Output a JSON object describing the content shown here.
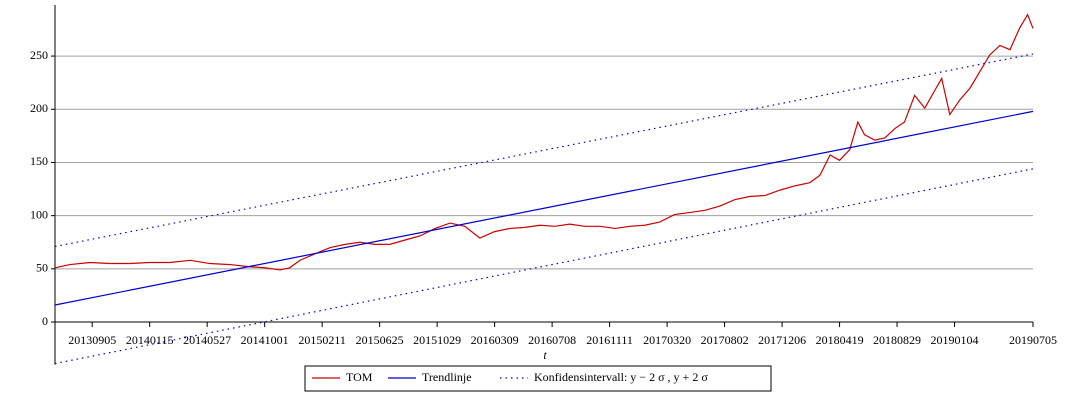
{
  "chart_data": {
    "type": "line",
    "x_label": "t",
    "xlim": [
      0,
      1446
    ],
    "xticks": [
      {
        "value": 55,
        "label": "20130905"
      },
      {
        "value": 140,
        "label": "20140115"
      },
      {
        "value": 225,
        "label": "20140527"
      },
      {
        "value": 310,
        "label": "20141001"
      },
      {
        "value": 395,
        "label": "20150211"
      },
      {
        "value": 480,
        "label": "20150625"
      },
      {
        "value": 565,
        "label": "20151029"
      },
      {
        "value": 650,
        "label": "20160309"
      },
      {
        "value": 735,
        "label": "20160708"
      },
      {
        "value": 820,
        "label": "20161111"
      },
      {
        "value": 905,
        "label": "20170320"
      },
      {
        "value": 990,
        "label": "20170802"
      },
      {
        "value": 1075,
        "label": "20171206"
      },
      {
        "value": 1160,
        "label": "20180419"
      },
      {
        "value": 1245,
        "label": "20180829"
      },
      {
        "value": 1330,
        "label": "20190104"
      },
      {
        "value": 1446,
        "label": "20190705"
      }
    ],
    "ylim": [
      -40,
      298
    ],
    "yticks": [
      0,
      50,
      100,
      150,
      200,
      250
    ],
    "grid": true,
    "series": [
      {
        "name": "TOM",
        "color": "#cc0000",
        "style": "solid",
        "x": [
          0,
          22,
          52,
          81,
          111,
          140,
          170,
          200,
          229,
          259,
          288,
          310,
          333,
          347,
          362,
          384,
          407,
          429,
          451,
          473,
          495,
          517,
          540,
          562,
          584,
          606,
          628,
          650,
          673,
          695,
          717,
          739,
          761,
          783,
          806,
          828,
          850,
          872,
          894,
          916,
          939,
          961,
          983,
          1005,
          1027,
          1050,
          1072,
          1094,
          1116,
          1131,
          1146,
          1160,
          1175,
          1187,
          1197,
          1212,
          1227,
          1242,
          1256,
          1271,
          1286,
          1301,
          1311,
          1323,
          1338,
          1353,
          1367,
          1382,
          1397,
          1412,
          1426,
          1438,
          1446
        ],
        "values": [
          51,
          54,
          56,
          55,
          55,
          56,
          56,
          58,
          55,
          54,
          52,
          51,
          49,
          51,
          58,
          64,
          70,
          73,
          75,
          73,
          73,
          77,
          81,
          88,
          93,
          90,
          79,
          85,
          88,
          89,
          91,
          90,
          92,
          90,
          90,
          88,
          90,
          91,
          94,
          101,
          103,
          105,
          109,
          115,
          118,
          119,
          124,
          128,
          131,
          138,
          157,
          152,
          162,
          188,
          176,
          171,
          173,
          182,
          188,
          213,
          201,
          218,
          229,
          195,
          209,
          220,
          235,
          251,
          260,
          256,
          276,
          289,
          276
        ]
      },
      {
        "name": "Trendlinje",
        "color": "#0000cc",
        "style": "solid",
        "x": [
          0,
          1446
        ],
        "values": [
          16,
          198
        ]
      },
      {
        "name": "Konfidensintervall: y − 2 σ , y + 2 σ",
        "color": "#0000cc",
        "style": "dotted",
        "x": [
          0,
          1446
        ],
        "values": [
          71,
          252
        ],
        "lower": [
          -39,
          144
        ]
      }
    ]
  }
}
